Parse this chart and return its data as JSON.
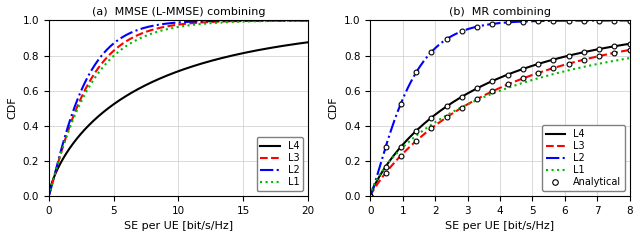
{
  "left_title": "(a)  MMSE (L-MMSE) combining",
  "right_title": "(b)  MR combining",
  "xlabel": "SE per UE [bit/s/Hz]",
  "ylabel": "CDF",
  "left_xlim": [
    0,
    20
  ],
  "right_xlim": [
    0,
    8
  ],
  "ylim": [
    0,
    1
  ],
  "left_xticks": [
    0,
    5,
    10,
    15,
    20
  ],
  "right_xticks": [
    0,
    1,
    2,
    3,
    4,
    5,
    6,
    7,
    8
  ],
  "yticks": [
    0,
    0.2,
    0.4,
    0.6,
    0.8,
    1.0
  ],
  "colors": {
    "L4": "#000000",
    "L3": "#ff0000",
    "L2": "#0000ff",
    "L1": "#00bb00"
  },
  "legend_labels": [
    "L4",
    "L3",
    "L2",
    "L1"
  ],
  "legend_labels_right": [
    "L4",
    "L3",
    "L2",
    "L1",
    "Analytical"
  ],
  "background_color": "#ffffff"
}
